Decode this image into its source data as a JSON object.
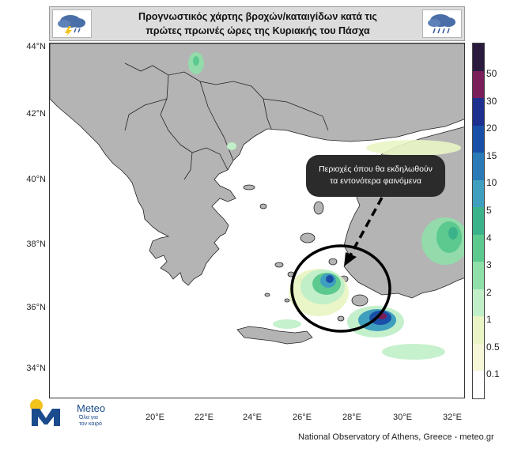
{
  "header": {
    "title_line1": "Προγνωστικός χάρτης βροχών/καταιγίδων κατά τις",
    "title_line2": "πρώτες πρωινές ώρες της Κυριακής του Πάσχα",
    "left_icon": "thunderstorm-cloud-icon",
    "right_icon": "rain-cloud-icon"
  },
  "map": {
    "lat_labels": [
      "44°N",
      "42°N",
      "40°N",
      "38°N",
      "36°N",
      "34°N"
    ],
    "lon_labels": [
      "20°E",
      "22°E",
      "24°E",
      "26°E",
      "28°E",
      "30°E",
      "32°E"
    ],
    "callout_line1": "Περιοχές όπου θα εκδηλωθούν",
    "callout_line2": "τα εντονότερα φαινόμενα",
    "land_color": "#b4b4b4",
    "sea_color": "#ffffff"
  },
  "legend": {
    "labels": [
      "50",
      "30",
      "20",
      "15",
      "10",
      "5",
      "4",
      "3",
      "2",
      "1",
      "0.5",
      "0.1"
    ],
    "colors": [
      "#2a1a3e",
      "#7a1f5a",
      "#1d2f8f",
      "#1a4fa8",
      "#2a7ab8",
      "#3f9fbf",
      "#3bb38a",
      "#5cc98f",
      "#8fdfa8",
      "#c0efc8",
      "#eaf5c5",
      "#f6f6d8",
      "#ffffff"
    ]
  },
  "logo": {
    "brand": "Meteo",
    "tagline_line1": "Όλα για",
    "tagline_line2": "τον καιρό"
  },
  "credit": "National Observatory of Athens, Greece - meteo.gr"
}
